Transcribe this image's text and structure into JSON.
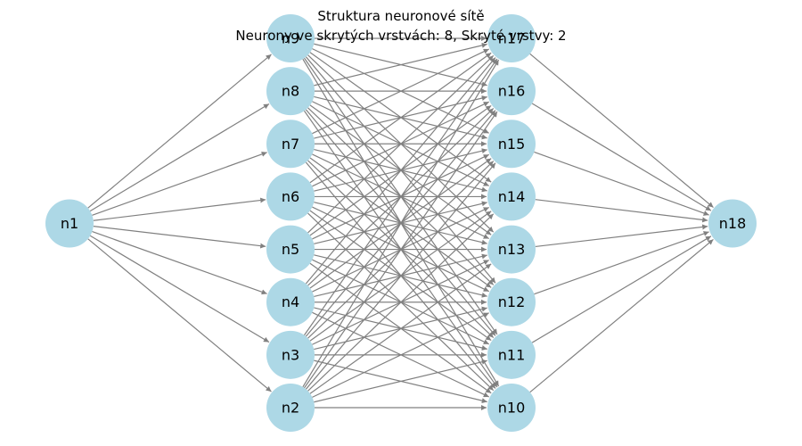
{
  "title": {
    "line1": "Struktura neuronové sítě",
    "line2": "Neurony ve skrytých vrstvách: 8, Skryté vrstvy: 2"
  },
  "colors": {
    "node_fill": "#add8e6",
    "edge": "#808080",
    "text": "#000000"
  },
  "layers": [
    [
      "n1"
    ],
    [
      "n9",
      "n8",
      "n7",
      "n6",
      "n5",
      "n4",
      "n3",
      "n2"
    ],
    [
      "n17",
      "n16",
      "n15",
      "n14",
      "n13",
      "n12",
      "n11",
      "n10"
    ],
    [
      "n18"
    ]
  ]
}
